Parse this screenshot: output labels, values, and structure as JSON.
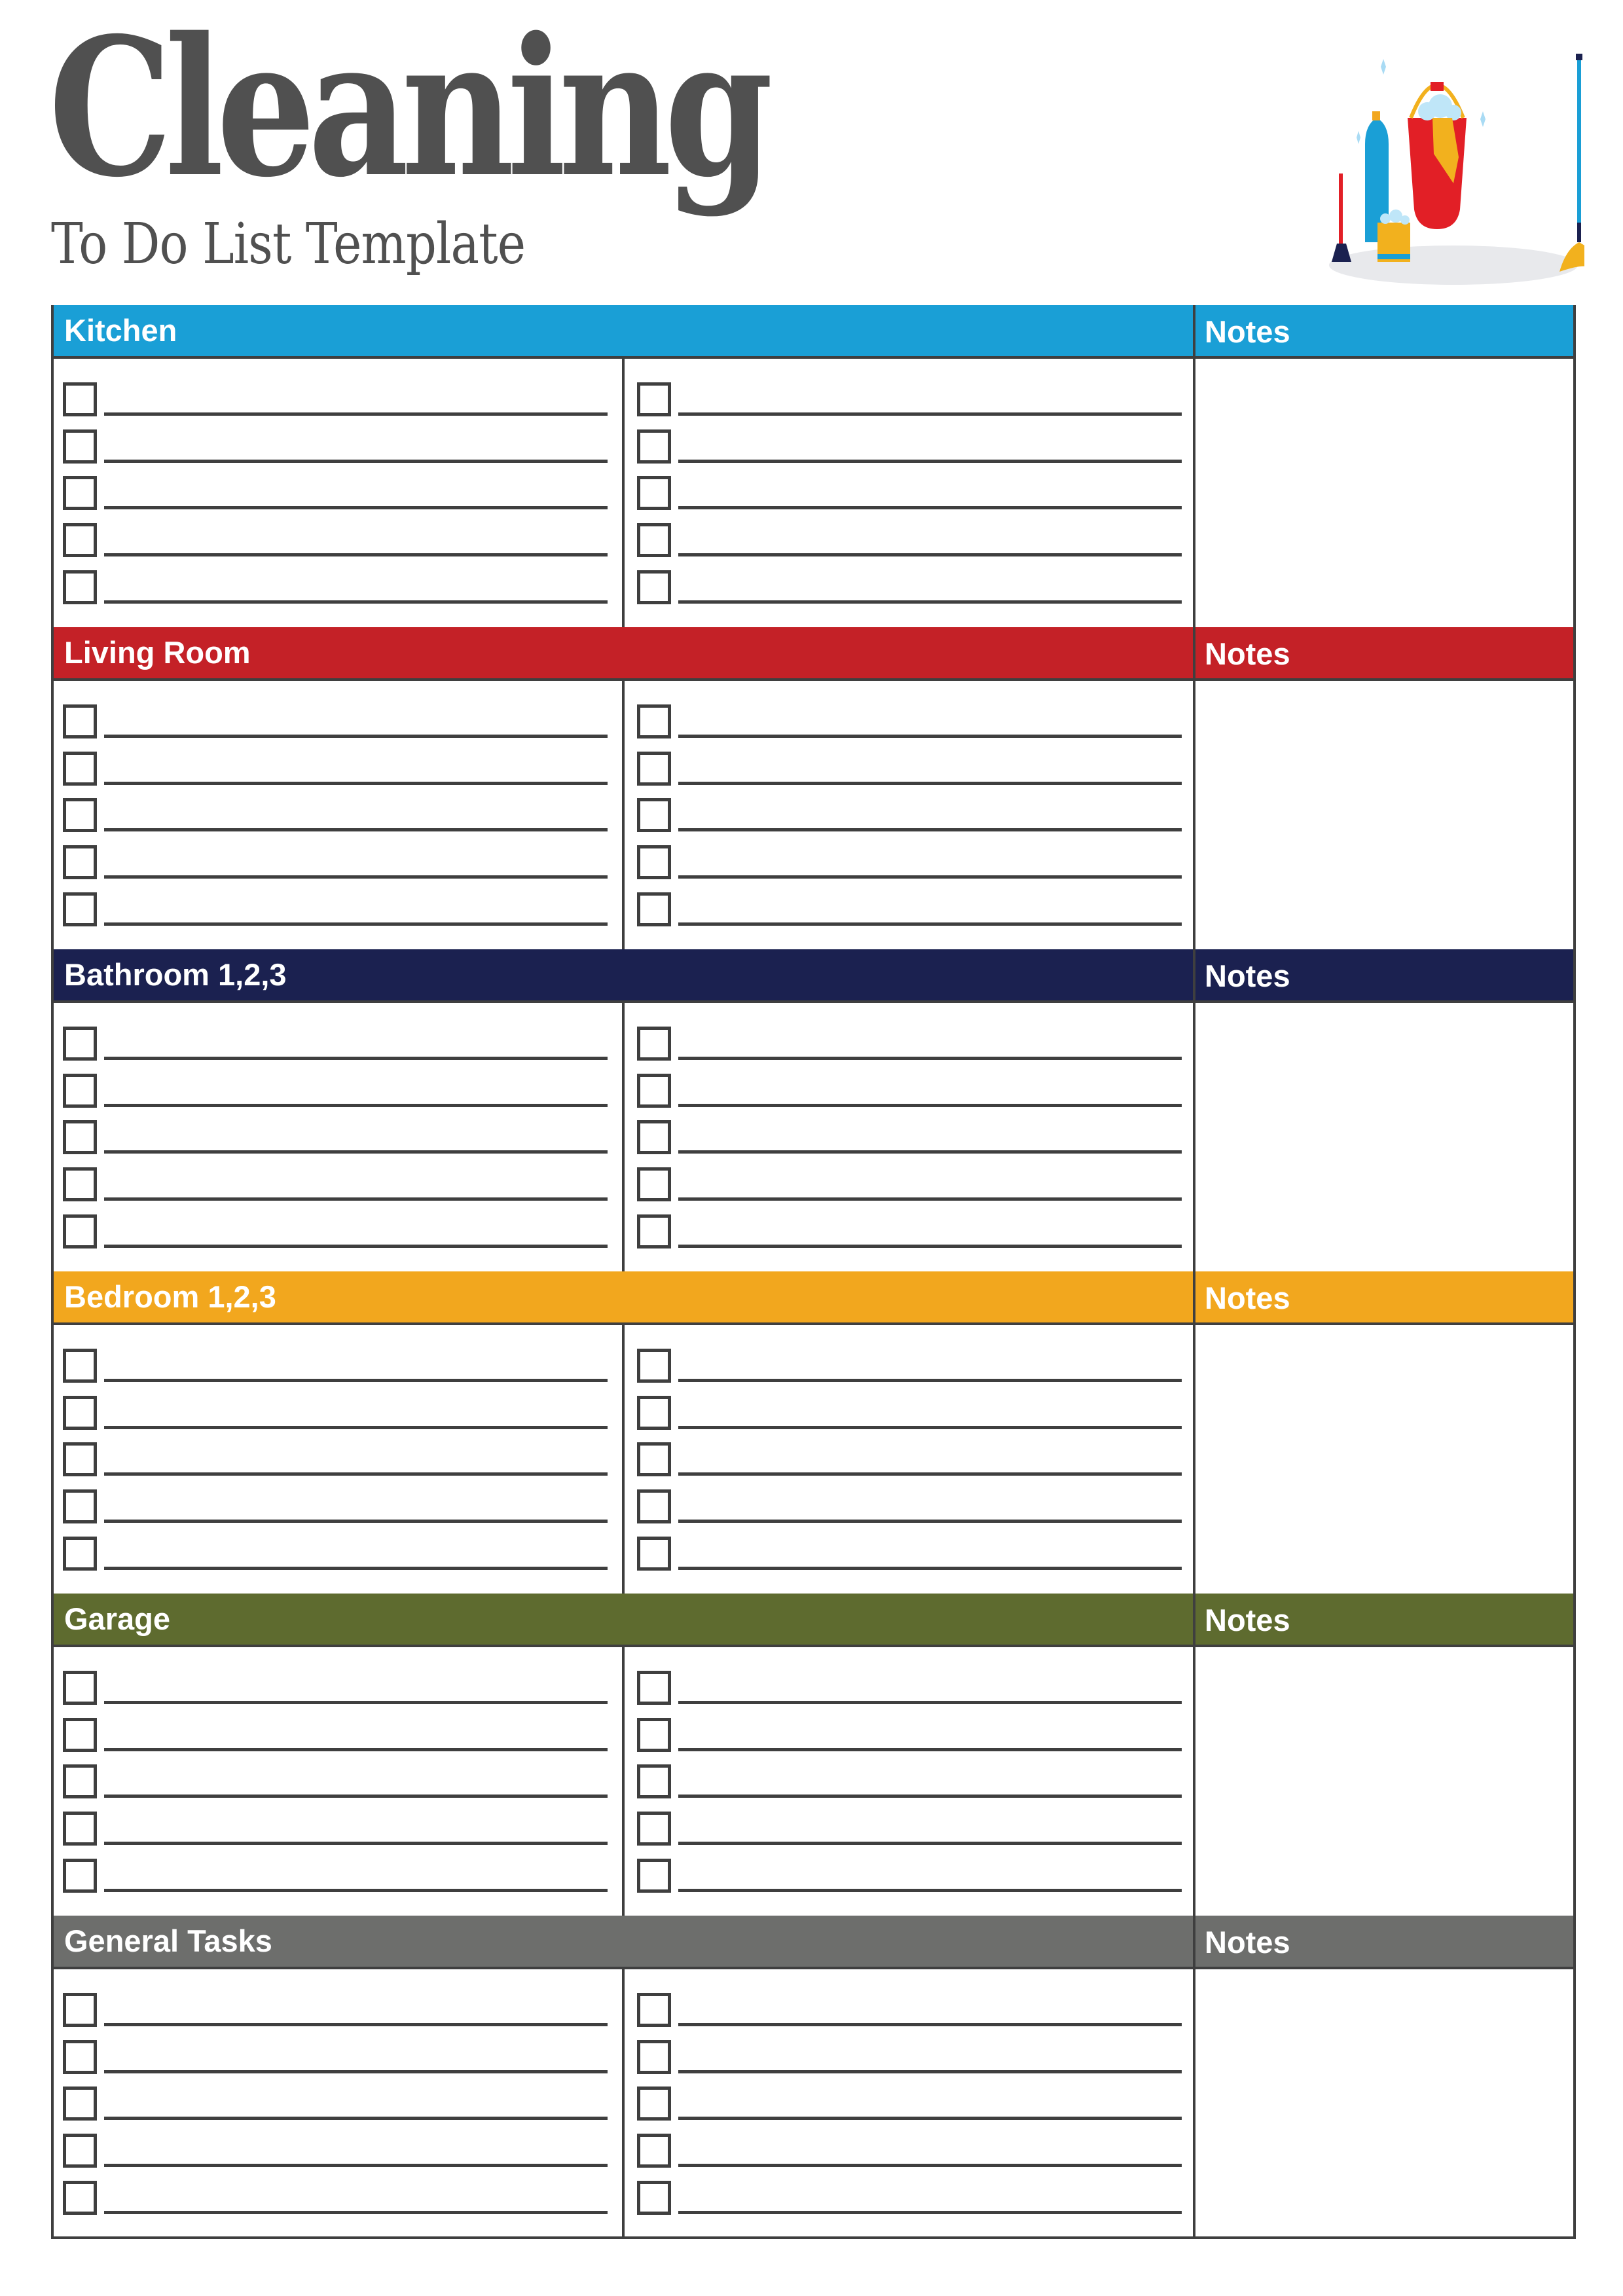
{
  "header": {
    "title": "Cleaning",
    "subtitle": "To Do List Template",
    "illustration": "cleaning-supplies-illustration"
  },
  "sections": [
    {
      "title": "Kitchen",
      "notes_label": "Notes",
      "color": "#1a9fd6"
    },
    {
      "title": "Living Room",
      "notes_label": "Notes",
      "color": "#c42127"
    },
    {
      "title": "Bathroom 1,2,3",
      "notes_label": "Notes",
      "color": "#1b2150"
    },
    {
      "title": "Bedroom 1,2,3",
      "notes_label": "Notes",
      "color": "#f2a71e"
    },
    {
      "title": "Garage",
      "notes_label": "Notes",
      "color": "#5e6b2f"
    },
    {
      "title": "General Tasks",
      "notes_label": "Notes",
      "color": "#6d6e6c"
    }
  ],
  "colors": {
    "text": "#505050",
    "border": "#3f3f3f"
  }
}
